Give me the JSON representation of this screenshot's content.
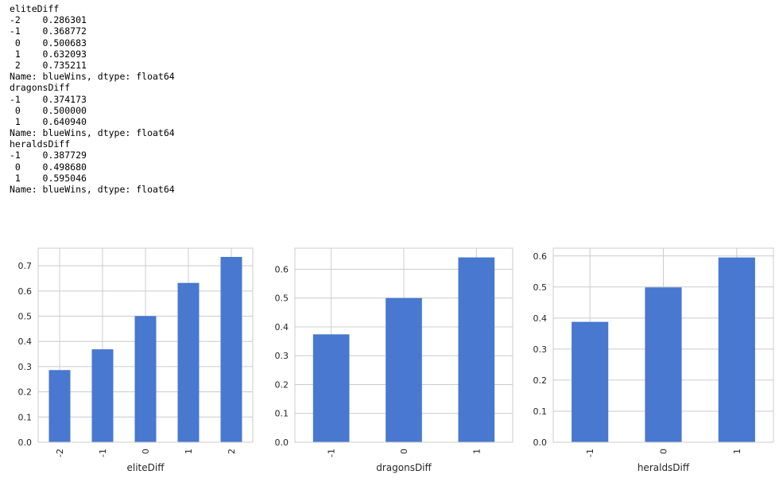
{
  "text_output": [
    "eliteDiff",
    "-2    0.286301",
    "-1    0.368772",
    " 0    0.500683",
    " 1    0.632093",
    " 2    0.735211",
    "Name: blueWins, dtype: float64",
    "dragonsDiff",
    "-1    0.374173",
    " 0    0.500000",
    " 1    0.640940",
    "Name: blueWins, dtype: float64",
    "heraldsDiff",
    "-1    0.387729",
    " 0    0.498680",
    " 1    0.595046",
    "Name: blueWins, dtype: float64"
  ],
  "colors": {
    "bar": "#4878cf",
    "grid": "#cccccc",
    "frame": "#cccccc",
    "text": "#262626"
  },
  "chart_data": [
    {
      "type": "bar",
      "categories": [
        "-2",
        "-1",
        "0",
        "1",
        "2"
      ],
      "values": [
        0.286301,
        0.368772,
        0.500683,
        0.632093,
        0.735211
      ],
      "xlabel": "eliteDiff",
      "ylabel": "",
      "yticks": [
        "0.0",
        "0.1",
        "0.2",
        "0.3",
        "0.4",
        "0.5",
        "0.6",
        "0.7"
      ],
      "ylim": [
        0,
        0.77
      ],
      "grid": true
    },
    {
      "type": "bar",
      "categories": [
        "-1",
        "0",
        "1"
      ],
      "values": [
        0.374173,
        0.5,
        0.64094
      ],
      "xlabel": "dragonsDiff",
      "ylabel": "",
      "yticks": [
        "0.0",
        "0.1",
        "0.2",
        "0.3",
        "0.4",
        "0.5",
        "0.6"
      ],
      "ylim": [
        0,
        0.673
      ],
      "grid": true
    },
    {
      "type": "bar",
      "categories": [
        "-1",
        "0",
        "1"
      ],
      "values": [
        0.387729,
        0.49868,
        0.595046
      ],
      "xlabel": "heraldsDiff",
      "ylabel": "",
      "yticks": [
        "0.0",
        "0.1",
        "0.2",
        "0.3",
        "0.4",
        "0.5",
        "0.6"
      ],
      "ylim": [
        0,
        0.625
      ],
      "grid": true
    }
  ]
}
